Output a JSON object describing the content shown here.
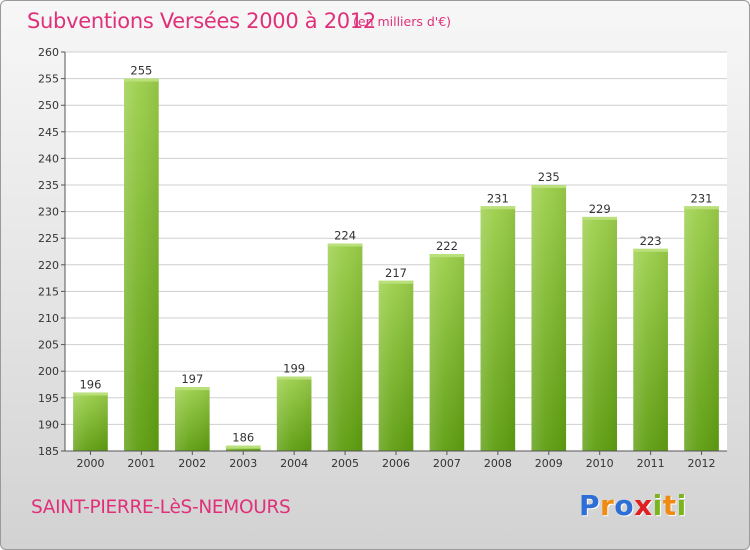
{
  "header": {
    "title": "Subventions Versées 2000 à 2012",
    "unit_note": "(en milliers d'€)"
  },
  "footer": {
    "commune": "SAINT-PIERRE-LèS-NEMOURS",
    "logo_letters": [
      "P",
      "r",
      "o",
      "x",
      "i",
      "t",
      "i"
    ],
    "logo_colors": [
      "#2d6fd6",
      "#f08a10",
      "#2d6fd6",
      "#e02020",
      "#7ab51d",
      "#f08a10",
      "#7ab51d"
    ]
  },
  "colors": {
    "title": "#e0307a",
    "bar_top": "#9ccf4a",
    "bar_bottom": "#5e9e10",
    "grid": "#cfcfcf"
  },
  "chart_data": {
    "type": "bar",
    "title": "Subventions Versées 2000 à 2012",
    "subtitle": "(en milliers d'€)",
    "xlabel": "",
    "ylabel": "",
    "categories": [
      "2000",
      "2001",
      "2002",
      "2003",
      "2004",
      "2005",
      "2006",
      "2007",
      "2008",
      "2009",
      "2010",
      "2011",
      "2012"
    ],
    "values": [
      196,
      255,
      197,
      186,
      199,
      224,
      217,
      222,
      231,
      235,
      229,
      223,
      231
    ],
    "ylim": [
      185,
      260
    ],
    "yticks": [
      185,
      190,
      195,
      200,
      205,
      210,
      215,
      220,
      225,
      230,
      235,
      240,
      245,
      250,
      255,
      260
    ],
    "grid": true,
    "data_labels": true
  }
}
